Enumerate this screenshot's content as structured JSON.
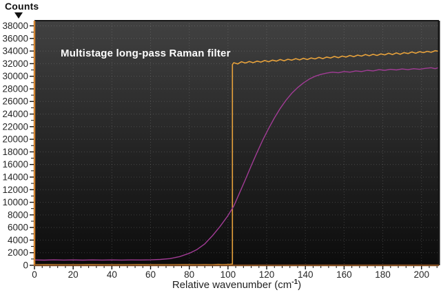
{
  "figure": {
    "y_axis_corner_label": "Counts",
    "x_axis_label_prefix": "Relative wavenumber (cm",
    "x_axis_label_sup": "-1",
    "x_axis_label_suffix": ")"
  },
  "chart_data": {
    "type": "line",
    "title": "Multistage long-pass Raman filter",
    "xlabel": "Relative wavenumber (cm-1)",
    "ylabel": "Counts",
    "xlim": [
      0,
      209
    ],
    "ylim": [
      0,
      38820
    ],
    "x_ticks": [
      0,
      20,
      40,
      60,
      80,
      100,
      120,
      140,
      160,
      180,
      200
    ],
    "y_ticks": [
      0,
      2000,
      4000,
      6000,
      8000,
      10000,
      12000,
      14000,
      16000,
      18000,
      20000,
      22000,
      24000,
      26000,
      28000,
      30000,
      32000,
      34000,
      36000,
      38000
    ],
    "x_minor_step": 4,
    "y_minor_step": 1000,
    "grid": "dotted-major",
    "legend_position": "none",
    "colors": {
      "plot_bg_top": "#414141",
      "plot_bg_mid": "#282828",
      "plot_bg_bottom": "#0c0c0c",
      "grid": "#9a9a9a",
      "spine_left": "#d4842f",
      "spine_bottom": "#7e4a1e",
      "spine_dark": "#161616",
      "tick": "#111111",
      "tick_label": "#262626",
      "title": "#ffffff"
    },
    "series": [
      {
        "name": "steep-edge-filter-orange",
        "color": "#e9a33c",
        "width": 1.6,
        "points": [
          [
            0,
            100
          ],
          [
            6,
            115
          ],
          [
            12,
            95
          ],
          [
            18,
            110
          ],
          [
            24,
            100
          ],
          [
            30,
            115
          ],
          [
            36,
            95
          ],
          [
            42,
            110
          ],
          [
            48,
            100
          ],
          [
            54,
            115
          ],
          [
            60,
            95
          ],
          [
            66,
            110
          ],
          [
            72,
            100
          ],
          [
            78,
            115
          ],
          [
            84,
            100
          ],
          [
            88,
            120
          ],
          [
            92,
            105
          ],
          [
            95,
            140
          ],
          [
            97,
            120
          ],
          [
            99,
            130
          ],
          [
            101,
            150
          ],
          [
            102.3,
            200
          ],
          [
            102.3,
            31850
          ],
          [
            103,
            32150
          ],
          [
            105,
            31950
          ],
          [
            107,
            32300
          ],
          [
            109,
            32100
          ],
          [
            111,
            32350
          ],
          [
            113,
            32150
          ],
          [
            115,
            32400
          ],
          [
            117,
            32250
          ],
          [
            119,
            32500
          ],
          [
            121,
            32300
          ],
          [
            123,
            32550
          ],
          [
            125,
            32400
          ],
          [
            127,
            32650
          ],
          [
            129,
            32450
          ],
          [
            131,
            32700
          ],
          [
            133,
            32550
          ],
          [
            135,
            32800
          ],
          [
            137,
            32600
          ],
          [
            139,
            32850
          ],
          [
            141,
            32650
          ],
          [
            143,
            32900
          ],
          [
            145,
            32750
          ],
          [
            147,
            33000
          ],
          [
            149,
            32800
          ],
          [
            151,
            33050
          ],
          [
            153,
            32900
          ],
          [
            155,
            33150
          ],
          [
            157,
            32950
          ],
          [
            159,
            33200
          ],
          [
            161,
            33050
          ],
          [
            163,
            33300
          ],
          [
            165,
            33100
          ],
          [
            167,
            33350
          ],
          [
            169,
            33200
          ],
          [
            171,
            33450
          ],
          [
            173,
            33250
          ],
          [
            175,
            33500
          ],
          [
            177,
            33300
          ],
          [
            179,
            33550
          ],
          [
            181,
            33400
          ],
          [
            183,
            33650
          ],
          [
            185,
            33450
          ],
          [
            187,
            33700
          ],
          [
            189,
            33500
          ],
          [
            191,
            33750
          ],
          [
            193,
            33600
          ],
          [
            195,
            33850
          ],
          [
            197,
            33650
          ],
          [
            199,
            33900
          ],
          [
            201,
            33750
          ],
          [
            203,
            33950
          ],
          [
            205,
            33800
          ],
          [
            207,
            34050
          ],
          [
            209,
            33950
          ]
        ]
      },
      {
        "name": "gradual-edge-filter-magenta",
        "color": "#a23c96",
        "width": 1.4,
        "points": [
          [
            0,
            850
          ],
          [
            5,
            820
          ],
          [
            10,
            860
          ],
          [
            15,
            830
          ],
          [
            20,
            855
          ],
          [
            25,
            825
          ],
          [
            30,
            850
          ],
          [
            35,
            830
          ],
          [
            40,
            855
          ],
          [
            45,
            835
          ],
          [
            50,
            850
          ],
          [
            55,
            845
          ],
          [
            60,
            860
          ],
          [
            65,
            930
          ],
          [
            70,
            1060
          ],
          [
            75,
            1380
          ],
          [
            80,
            1900
          ],
          [
            84,
            2500
          ],
          [
            88,
            3400
          ],
          [
            92,
            4700
          ],
          [
            96,
            6200
          ],
          [
            100,
            7900
          ],
          [
            103,
            9400
          ],
          [
            106,
            11500
          ],
          [
            109,
            13600
          ],
          [
            112,
            15800
          ],
          [
            115,
            17900
          ],
          [
            118,
            19900
          ],
          [
            121,
            21700
          ],
          [
            124,
            23400
          ],
          [
            127,
            24900
          ],
          [
            130,
            26200
          ],
          [
            133,
            27300
          ],
          [
            136,
            28200
          ],
          [
            139,
            28950
          ],
          [
            142,
            29550
          ],
          [
            145,
            30000
          ],
          [
            148,
            30300
          ],
          [
            151,
            30500
          ],
          [
            154,
            30650
          ],
          [
            157,
            30550
          ],
          [
            160,
            30750
          ],
          [
            163,
            30650
          ],
          [
            166,
            30850
          ],
          [
            169,
            30750
          ],
          [
            172,
            30950
          ],
          [
            175,
            30850
          ],
          [
            178,
            31050
          ],
          [
            181,
            30950
          ],
          [
            184,
            31100
          ],
          [
            187,
            31000
          ],
          [
            190,
            31150
          ],
          [
            193,
            31050
          ],
          [
            196,
            31200
          ],
          [
            199,
            31100
          ],
          [
            202,
            31250
          ],
          [
            205,
            31350
          ],
          [
            207,
            31200
          ],
          [
            209,
            31400
          ]
        ]
      }
    ]
  }
}
